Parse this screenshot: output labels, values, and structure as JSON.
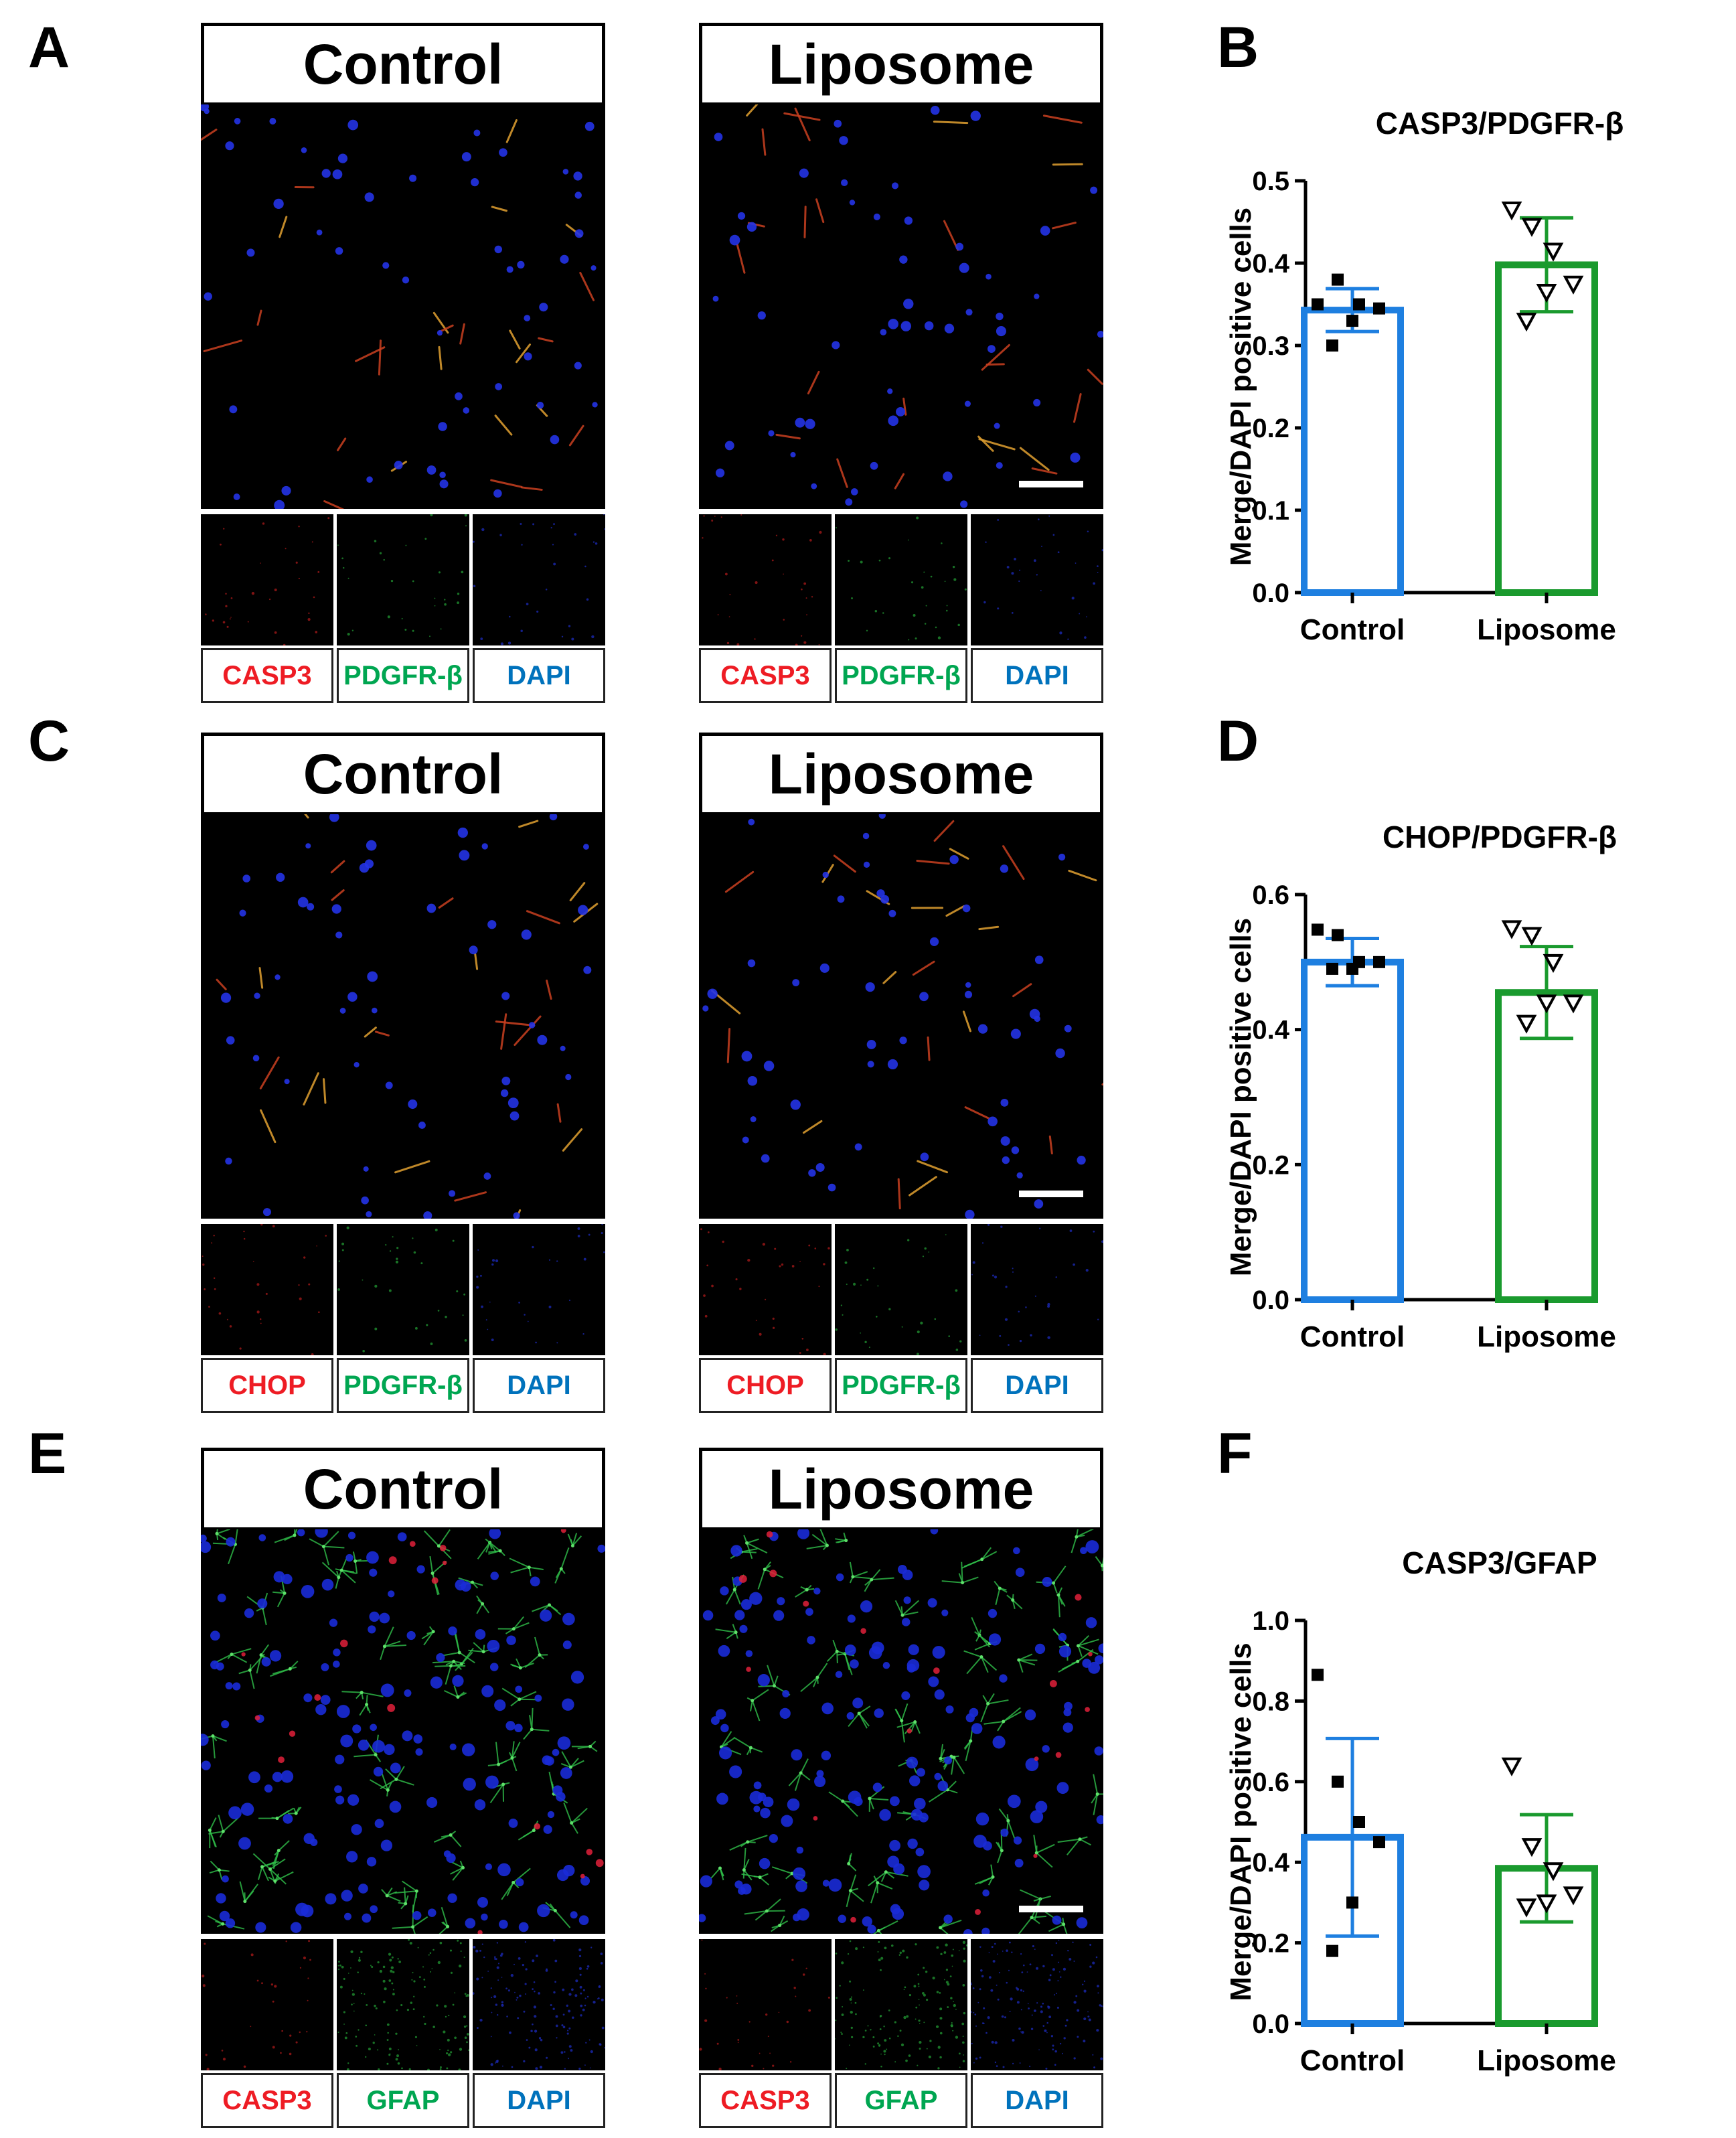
{
  "panel_letters": {
    "A": "A",
    "B": "B",
    "C": "C",
    "D": "D",
    "E": "E",
    "F": "F"
  },
  "rows": [
    {
      "id": "ab",
      "images": [
        {
          "title": "Control",
          "channels": [
            "CASP3",
            "PDGFR-β",
            "DAPI"
          ],
          "scale_bar": false
        },
        {
          "title": "Liposome",
          "channels": [
            "CASP3",
            "PDGFR-β",
            "DAPI"
          ],
          "scale_bar": true
        }
      ]
    },
    {
      "id": "cd",
      "images": [
        {
          "title": "Control",
          "channels": [
            "CHOP",
            "PDGFR-β",
            "DAPI"
          ],
          "scale_bar": false
        },
        {
          "title": "Liposome",
          "channels": [
            "CHOP",
            "PDGFR-β",
            "DAPI"
          ],
          "scale_bar": true
        }
      ]
    },
    {
      "id": "ef",
      "images": [
        {
          "title": "Control",
          "channels": [
            "CASP3",
            "GFAP",
            "DAPI"
          ],
          "scale_bar": false
        },
        {
          "title": "Liposome",
          "channels": [
            "CASP3",
            "GFAP",
            "DAPI"
          ],
          "scale_bar": true
        }
      ]
    }
  ],
  "channel_colors": {
    "red": "#ee1c24",
    "green": "#00a651",
    "blue": "#0072bc"
  },
  "series_colors": {
    "Control": "#1e7fe0",
    "Liposome": "#1a9a2e"
  },
  "chart_data": [
    {
      "type": "bar",
      "title": "CASP3/PDGFR-β",
      "ylabel": "Merge/DAPI positive cells",
      "categories": [
        "Control",
        "Liposome"
      ],
      "values": [
        0.343,
        0.398
      ],
      "error": [
        0.026,
        0.057
      ],
      "points": [
        [
          0.35,
          0.38,
          0.35,
          0.345,
          0.33,
          0.3
        ],
        [
          0.465,
          0.445,
          0.415,
          0.375,
          0.365,
          0.33
        ]
      ],
      "ylim": [
        0,
        0.5
      ],
      "yticks": [
        "0.0",
        "0.1",
        "0.2",
        "0.3",
        "0.4",
        "0.5"
      ],
      "ytick_values": [
        0,
        0.1,
        0.2,
        0.3,
        0.4,
        0.5
      ]
    },
    {
      "type": "bar",
      "title": "CHOP/PDGFR-β",
      "ylabel": "Merge/DAPI positive cells",
      "categories": [
        "Control",
        "Liposome"
      ],
      "values": [
        0.5,
        0.455
      ],
      "error": [
        0.035,
        0.068
      ],
      "points": [
        [
          0.548,
          0.54,
          0.5,
          0.5,
          0.49,
          0.49
        ],
        [
          0.55,
          0.54,
          0.5,
          0.44,
          0.44,
          0.41
        ]
      ],
      "ylim": [
        0,
        0.6
      ],
      "yticks": [
        "0.0",
        "0.2",
        "0.4",
        "0.6"
      ],
      "ytick_values": [
        0,
        0.2,
        0.4,
        0.6
      ]
    },
    {
      "type": "bar",
      "title": "CASP3/GFAP",
      "ylabel": "Merge/DAPI positive cells",
      "categories": [
        "Control",
        "Liposome"
      ],
      "values": [
        0.462,
        0.385
      ],
      "error": [
        0.245,
        0.133
      ],
      "points": [
        [
          0.865,
          0.6,
          0.5,
          0.45,
          0.3,
          0.18
        ],
        [
          0.64,
          0.44,
          0.38,
          0.32,
          0.3,
          0.29
        ]
      ],
      "ylim": [
        0,
        1.0
      ],
      "yticks": [
        "0.0",
        "0.2",
        "0.4",
        "0.6",
        "0.8",
        "1.0"
      ],
      "ytick_values": [
        0,
        0.2,
        0.4,
        0.6,
        0.8,
        1.0
      ]
    }
  ]
}
